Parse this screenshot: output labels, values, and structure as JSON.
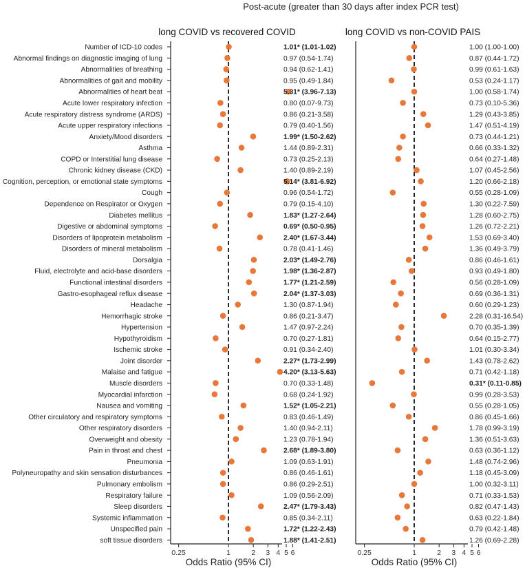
{
  "chart_data": {
    "type": "scatter",
    "title": "Post-acute (greater than 30 days after index PCR test)",
    "xlabel": "Odds Ratio (95% CI)",
    "xscale": "log",
    "xlim": [
      0.2,
      6.5
    ],
    "xticks": [
      0.25,
      1,
      2,
      3,
      4,
      5,
      6
    ],
    "xtick_labels": [
      "0.25",
      "1",
      "2",
      "3",
      "4",
      "5",
      "6"
    ],
    "reference_line": 1,
    "marker_color": "#e8773a",
    "categories": [
      "Number of ICD-10 codes",
      "Abnormal findings on diagnostic imaging of lung",
      "Abnormalities of breathing",
      "Abnormalities of gait and mobility",
      "Abnormalities of heart beat",
      "Acute lower respiratory infection",
      "Acute respiratory distress syndrome (ARDS)",
      "Acute upper respiratory infections",
      "Anxiety/Mood disorders",
      "Asthma",
      "COPD or Interstitial lung disease",
      "Chronic kidney disease (CKD)",
      "Cognition, perception, or emotional state symptoms",
      "Cough",
      "Dependence on Respirator or Oxygen",
      "Diabetes mellitus",
      "Digestive or abdominal symptoms",
      "Disorders of lipoprotein metabolism",
      "Disorders of mineral metabolism",
      "Dorsalgia",
      "Fluid, electrolyte and acid-base disorders",
      "Functional intestinal disorders",
      "Gastro-esophageal reflux disease",
      "Headache",
      "Hemorrhagic stroke",
      "Hypertension",
      "Hypothyroidism",
      "Ischemic stroke",
      "Joint disorder",
      "Malaise and fatigue",
      "Muscle disorders",
      "Myocardial infarction",
      "Nausea and vomiting",
      "Other circulatory and respiratory symptoms",
      "Other respiratory disorders",
      "Overweight and obesity",
      "Pain in throat and chest",
      "Pneumonia",
      "Polyneuropathy and skin sensation disturbances",
      "Pulmonary embolism",
      "Respiratory failure",
      "Sleep disorders",
      "Systemic inflammation",
      "Unspecified pain",
      "soft tissue disorders"
    ],
    "series": [
      {
        "name": "long COVID vs recovered COVID",
        "values": [
          1.01,
          0.97,
          0.94,
          0.95,
          5.31,
          0.8,
          0.86,
          0.79,
          1.99,
          1.44,
          0.73,
          1.4,
          5.14,
          0.96,
          0.79,
          1.83,
          0.69,
          2.4,
          0.78,
          2.03,
          1.98,
          1.77,
          2.04,
          1.3,
          0.86,
          1.47,
          0.7,
          0.91,
          2.27,
          4.2,
          0.7,
          0.68,
          1.52,
          0.83,
          1.4,
          1.23,
          2.68,
          1.09,
          0.86,
          0.86,
          1.09,
          2.47,
          0.85,
          1.72,
          1.88
        ],
        "ci_text": [
          "1.01* (1.01-1.02)",
          "0.97 (0.54-1.74)",
          "0.94 (0.62-1.41)",
          "0.95 (0.49-1.84)",
          "5.31* (3.96-7.13)",
          "0.80 (0.07-9.73)",
          "0.86 (0.21-3.58)",
          "0.79 (0.40-1.56)",
          "1.99* (1.50-2.62)",
          "1.44 (0.89-2.31)",
          "0.73 (0.25-2.13)",
          "1.40 (0.89-2.19)",
          "5.14* (3.81-6.92)",
          "0.96 (0.54-1.72)",
          "0.79 (0.15-4.10)",
          "1.83* (1.27-2.64)",
          "0.69* (0.50-0.95)",
          "2.40* (1.67-3.44)",
          "0.78 (0.41-1.46)",
          "2.03* (1.49-2.76)",
          "1.98* (1.36-2.87)",
          "1.77* (1.21-2.59)",
          "2.04* (1.37-3.03)",
          "1.30 (0.87-1.94)",
          "0.86 (0.21-3.47)",
          "1.47 (0.97-2.24)",
          "0.70 (0.27-1.81)",
          "0.91 (0.34-2.40)",
          "2.27* (1.73-2.99)",
          "4.20* (3.13-5.63)",
          "0.70 (0.33-1.48)",
          "0.68 (0.24-1.92)",
          "1.52* (1.05-2.21)",
          "0.83 (0.46-1.49)",
          "1.40 (0.94-2.11)",
          "1.23 (0.78-1.94)",
          "2.68* (1.89-3.80)",
          "1.09 (0.63-1.91)",
          "0.86 (0.46-1.61)",
          "0.86 (0.29-2.51)",
          "1.09 (0.56-2.09)",
          "2.47* (1.79-3.43)",
          "0.85 (0.34-2.11)",
          "1.72* (1.22-2.43)",
          "1.88* (1.41-2.51)"
        ],
        "significant": [
          true,
          false,
          false,
          false,
          true,
          false,
          false,
          false,
          true,
          false,
          false,
          false,
          true,
          false,
          false,
          true,
          true,
          true,
          false,
          true,
          true,
          true,
          true,
          false,
          false,
          false,
          false,
          false,
          true,
          true,
          false,
          false,
          true,
          false,
          false,
          false,
          true,
          false,
          false,
          false,
          false,
          true,
          false,
          true,
          true
        ]
      },
      {
        "name": "long COVID vs non-COVID PAIS",
        "values": [
          1.0,
          0.87,
          0.99,
          0.53,
          1.0,
          0.73,
          1.29,
          1.47,
          0.73,
          0.66,
          0.64,
          1.07,
          1.2,
          0.55,
          1.3,
          1.28,
          1.26,
          1.53,
          1.36,
          0.86,
          0.93,
          0.56,
          0.69,
          0.6,
          2.28,
          0.7,
          0.64,
          1.01,
          1.43,
          0.71,
          0.31,
          0.99,
          0.55,
          0.86,
          1.78,
          1.36,
          0.63,
          1.48,
          1.18,
          1.0,
          0.71,
          0.82,
          0.63,
          0.79,
          1.26
        ],
        "ci_text": [
          "1.00 (1.00-1.00)",
          "0.87 (0.44-1.72)",
          "0.99 (0.61-1.63)",
          "0.53 (0.24-1.17)",
          "1.00 (0.58-1.74)",
          "0.73 (0.10-5.36)",
          "1.29 (0.43-3.85)",
          "1.47 (0.51-4.19)",
          "0.73 (0.44-1.21)",
          "0.66 (0.33-1.32)",
          "0.64 (0.27-1.48)",
          "1.07 (0.45-2.56)",
          "1.20 (0.66-2.18)",
          "0.55 (0.28-1.09)",
          "1.30 (0.22-7.59)",
          "1.28 (0.60-2.75)",
          "1.26 (0.72-2.21)",
          "1.53 (0.69-3.40)",
          "1.36 (0.49-3.79)",
          "0.86 (0.46-1.61)",
          "0.93 (0.49-1.80)",
          "0.56 (0.28-1.09)",
          "0.69 (0.36-1.31)",
          "0.60 (0.29-1.23)",
          "2.28 (0.31-16.54)",
          "0.70 (0.35-1.39)",
          "0.64 (0.15-2.77)",
          "1.01 (0.30-3.34)",
          "1.43 (0.78-2.62)",
          "0.71 (0.42-1.18)",
          "0.31* (0.11-0.85)",
          "0.99 (0.28-3.53)",
          "0.55 (0.28-1.05)",
          "0.86 (0.45-1.66)",
          "1.78 (0.99-3.19)",
          "1.36 (0.51-3.63)",
          "0.63 (0.36-1.12)",
          "1.48 (0.74-2.96)",
          "1.18 (0.45-3.09)",
          "1.00 (0.32-3.11)",
          "0.71 (0.33-1.53)",
          "0.82 (0.47-1.43)",
          "0.63 (0.22-1.84)",
          "0.79 (0.42-1.48)",
          "1.26 (0.69-2.28)"
        ],
        "significant": [
          false,
          false,
          false,
          false,
          false,
          false,
          false,
          false,
          false,
          false,
          false,
          false,
          false,
          false,
          false,
          false,
          false,
          false,
          false,
          false,
          false,
          false,
          false,
          false,
          false,
          false,
          false,
          false,
          false,
          false,
          true,
          false,
          false,
          false,
          false,
          false,
          false,
          false,
          false,
          false,
          false,
          false,
          false,
          false,
          false
        ]
      }
    ]
  }
}
